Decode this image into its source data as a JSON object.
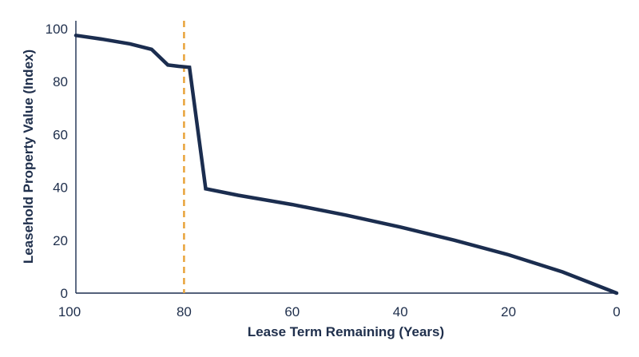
{
  "chart_data": {
    "type": "line",
    "title": "",
    "xlabel": "Lease Term Remaining (Years)",
    "ylabel": "Leasehold Property Value (Index)",
    "xlim": [
      100,
      0
    ],
    "ylim": [
      0,
      100
    ],
    "x_reversed": true,
    "x_ticks": [
      100,
      80,
      60,
      40,
      20,
      0
    ],
    "y_ticks": [
      0,
      20,
      40,
      60,
      80,
      100
    ],
    "grid": false,
    "reference_line": {
      "x": 80,
      "color": "#e8a33a",
      "style": "dashed"
    },
    "series": [
      {
        "color": "#1b2d4f",
        "points": [
          [
            100,
            97.5
          ],
          [
            95,
            96
          ],
          [
            90,
            94.3
          ],
          [
            86,
            92.2
          ],
          [
            83,
            86.3
          ],
          [
            81,
            85.8
          ],
          [
            79,
            85.4
          ],
          [
            76,
            39.5
          ],
          [
            70,
            37
          ],
          [
            60,
            33.5
          ],
          [
            50,
            29.5
          ],
          [
            40,
            25
          ],
          [
            30,
            20
          ],
          [
            20,
            14.5
          ],
          [
            10,
            8
          ],
          [
            0,
            0
          ]
        ]
      }
    ]
  }
}
